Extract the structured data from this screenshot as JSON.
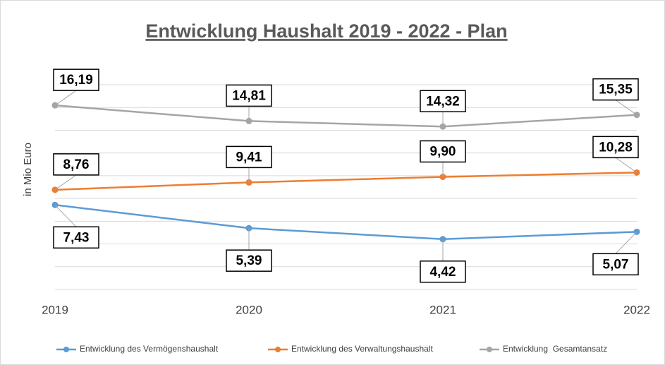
{
  "chart_data": {
    "type": "line",
    "title": "Entwicklung Haushalt 2019 - 2022 - Plan",
    "y_label": "in Mio Euro",
    "categories": [
      "2019",
      "2020",
      "2021",
      "2022"
    ],
    "ylim": [
      0,
      18
    ],
    "yticks": [
      0,
      2,
      4,
      6,
      8,
      10,
      12,
      14,
      16,
      18
    ],
    "grid": true,
    "legend": "bottom",
    "series": [
      {
        "name": "Entwicklung des Vermögenshaushalt",
        "color": "#5b9bd5",
        "values": [
          7.43,
          5.39,
          4.42,
          5.07
        ],
        "value_labels": [
          "7,43",
          "5,39",
          "4,42",
          "5,07"
        ]
      },
      {
        "name": "Entwicklung des Verwaltungshaushalt",
        "color": "#ed7d31",
        "values": [
          8.76,
          9.41,
          9.9,
          10.28
        ],
        "value_labels": [
          "8,76",
          "9,41",
          "9,90",
          "10,28"
        ]
      },
      {
        "name": "Entwicklung  Gesamtansatz",
        "color": "#a5a5a5",
        "values": [
          16.19,
          14.81,
          14.32,
          15.35
        ],
        "value_labels": [
          "16,19",
          "14,81",
          "14,32",
          "15,35"
        ]
      }
    ]
  }
}
